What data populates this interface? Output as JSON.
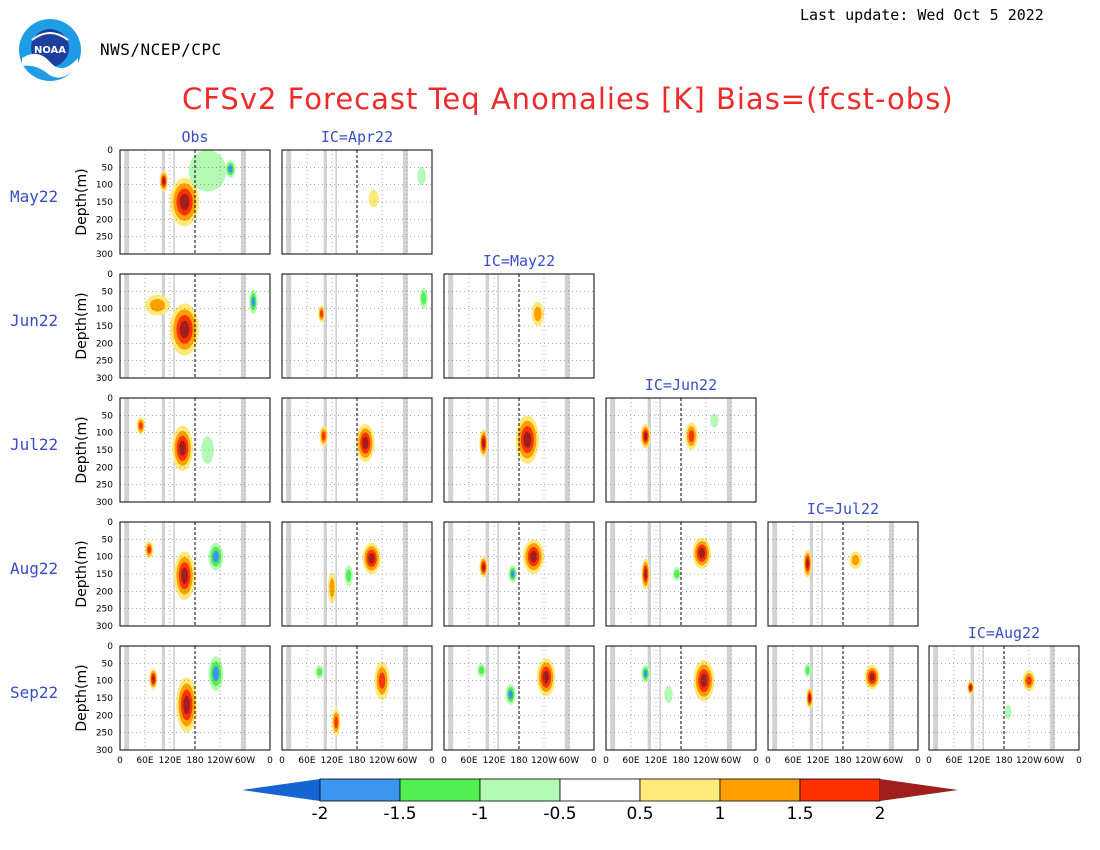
{
  "header": {
    "agency": "NWS/NCEP/CPC",
    "last_update": "Last update: Wed Oct 5 2022",
    "title": "CFSv2 Forecast Teq Anomalies [K] Bias=(fcst-obs)",
    "logo_text": "NOAA"
  },
  "chart_data": {
    "type": "heatmap",
    "panel_kind": "depth-longitude cross section",
    "rows": [
      "May22",
      "Jun22",
      "Jul22",
      "Aug22",
      "Sep22"
    ],
    "columns": [
      "Obs",
      "IC=Apr22",
      "IC=May22",
      "IC=Jun22",
      "IC=Jul22",
      "IC=Aug22"
    ],
    "ylabel": "Depth(m)",
    "y_ticks": [
      0,
      50,
      100,
      150,
      200,
      250,
      300
    ],
    "ylim": [
      300,
      0
    ],
    "x_ticks": [
      "0",
      "60E",
      "120E",
      "180",
      "120W",
      "60W",
      "0"
    ],
    "x_tick_degrees_east": [
      0,
      60,
      120,
      180,
      240,
      300,
      360
    ],
    "dateline_degrees_east": 180,
    "colorbar": {
      "levels": [
        -2,
        -1.5,
        -1,
        -0.5,
        0.5,
        1,
        1.5,
        2
      ],
      "labels": [
        "-2",
        "-1.5",
        "-1",
        "-0.5",
        "0.5",
        "1",
        "1.5",
        "2"
      ],
      "colors": [
        "#1464d2",
        "#3c96f0",
        "#50f050",
        "#b4fab4",
        "#ffffff",
        "#ffe978",
        "#ffa000",
        "#ff3200",
        "#a01e1e"
      ],
      "extend": "both"
    },
    "colors": {
      "title": "#ee2a2a",
      "labels": "#3a4cc8",
      "land_mask": "#d2d2d2"
    },
    "anomaly_features": [
      {
        "row": "May22",
        "col": "Obs",
        "lon": 155,
        "depth": 150,
        "value": 2.3,
        "rx": 35,
        "ry": 70
      },
      {
        "row": "May22",
        "col": "Obs",
        "lon": 105,
        "depth": 90,
        "value": 2.1,
        "rx": 10,
        "ry": 30
      },
      {
        "row": "May22",
        "col": "Obs",
        "lon": 265,
        "depth": 55,
        "value": -1.8,
        "rx": 12,
        "ry": 25
      },
      {
        "row": "May22",
        "col": "Obs",
        "lon": 210,
        "depth": 60,
        "value": -0.8,
        "rx": 45,
        "ry": 60
      },
      {
        "row": "May22",
        "col": "IC=Apr22",
        "lon": 220,
        "depth": 140,
        "value": 0.8,
        "rx": 12,
        "ry": 25
      },
      {
        "row": "May22",
        "col": "IC=Apr22",
        "lon": 335,
        "depth": 75,
        "value": -0.6,
        "rx": 10,
        "ry": 25
      },
      {
        "row": "Jun22",
        "col": "Obs",
        "lon": 155,
        "depth": 160,
        "value": 2.3,
        "rx": 35,
        "ry": 75
      },
      {
        "row": "Jun22",
        "col": "Obs",
        "lon": 90,
        "depth": 90,
        "value": 1.2,
        "rx": 30,
        "ry": 30
      },
      {
        "row": "Jun22",
        "col": "Obs",
        "lon": 320,
        "depth": 80,
        "value": -1.6,
        "rx": 10,
        "ry": 35
      },
      {
        "row": "Jun22",
        "col": "IC=Apr22",
        "lon": 95,
        "depth": 115,
        "value": 1.6,
        "rx": 8,
        "ry": 25
      },
      {
        "row": "Jun22",
        "col": "IC=Apr22",
        "lon": 340,
        "depth": 70,
        "value": -1.2,
        "rx": 10,
        "ry": 30
      },
      {
        "row": "Jun22",
        "col": "IC=May22",
        "lon": 225,
        "depth": 115,
        "value": 1.1,
        "rx": 15,
        "ry": 35
      },
      {
        "row": "Jul22",
        "col": "Obs",
        "lon": 150,
        "depth": 145,
        "value": 2.3,
        "rx": 25,
        "ry": 65
      },
      {
        "row": "Jul22",
        "col": "Obs",
        "lon": 50,
        "depth": 80,
        "value": 1.6,
        "rx": 10,
        "ry": 25
      },
      {
        "row": "Jul22",
        "col": "Obs",
        "lon": 210,
        "depth": 150,
        "value": -0.7,
        "rx": 15,
        "ry": 40
      },
      {
        "row": "Jul22",
        "col": "IC=Apr22",
        "lon": 200,
        "depth": 130,
        "value": 2.3,
        "rx": 22,
        "ry": 55
      },
      {
        "row": "Jul22",
        "col": "IC=Apr22",
        "lon": 100,
        "depth": 110,
        "value": 1.6,
        "rx": 10,
        "ry": 30
      },
      {
        "row": "Jul22",
        "col": "IC=May22",
        "lon": 200,
        "depth": 120,
        "value": 2.3,
        "rx": 28,
        "ry": 70
      },
      {
        "row": "Jul22",
        "col": "IC=May22",
        "lon": 95,
        "depth": 130,
        "value": 2.1,
        "rx": 10,
        "ry": 40
      },
      {
        "row": "Jul22",
        "col": "IC=Jun22",
        "lon": 95,
        "depth": 110,
        "value": 2.1,
        "rx": 12,
        "ry": 35
      },
      {
        "row": "Jul22",
        "col": "IC=Jun22",
        "lon": 205,
        "depth": 110,
        "value": 1.6,
        "rx": 15,
        "ry": 40
      },
      {
        "row": "Jul22",
        "col": "IC=Jun22",
        "lon": 260,
        "depth": 65,
        "value": -0.7,
        "rx": 10,
        "ry": 20
      },
      {
        "row": "Aug22",
        "col": "Obs",
        "lon": 155,
        "depth": 155,
        "value": 2.3,
        "rx": 25,
        "ry": 70
      },
      {
        "row": "Aug22",
        "col": "Obs",
        "lon": 230,
        "depth": 100,
        "value": -1.8,
        "rx": 18,
        "ry": 40
      },
      {
        "row": "Aug22",
        "col": "Obs",
        "lon": 70,
        "depth": 80,
        "value": 1.6,
        "rx": 10,
        "ry": 25
      },
      {
        "row": "Aug22",
        "col": "IC=Apr22",
        "lon": 215,
        "depth": 105,
        "value": 2.1,
        "rx": 22,
        "ry": 45
      },
      {
        "row": "Aug22",
        "col": "IC=Apr22",
        "lon": 160,
        "depth": 155,
        "value": -1.3,
        "rx": 10,
        "ry": 30
      },
      {
        "row": "Aug22",
        "col": "IC=Apr22",
        "lon": 120,
        "depth": 190,
        "value": 1.1,
        "rx": 10,
        "ry": 45
      },
      {
        "row": "Aug22",
        "col": "IC=May22",
        "lon": 215,
        "depth": 100,
        "value": 2.3,
        "rx": 25,
        "ry": 50
      },
      {
        "row": "Aug22",
        "col": "IC=May22",
        "lon": 165,
        "depth": 150,
        "value": -1.8,
        "rx": 10,
        "ry": 25
      },
      {
        "row": "Aug22",
        "col": "IC=May22",
        "lon": 95,
        "depth": 130,
        "value": 2.1,
        "rx": 10,
        "ry": 30
      },
      {
        "row": "Aug22",
        "col": "IC=Jun22",
        "lon": 230,
        "depth": 90,
        "value": 2.1,
        "rx": 22,
        "ry": 45
      },
      {
        "row": "Aug22",
        "col": "IC=Jun22",
        "lon": 95,
        "depth": 150,
        "value": 2.3,
        "rx": 10,
        "ry": 45
      },
      {
        "row": "Aug22",
        "col": "IC=Jun22",
        "lon": 170,
        "depth": 150,
        "value": -1.3,
        "rx": 10,
        "ry": 20
      },
      {
        "row": "Aug22",
        "col": "IC=Jul22",
        "lon": 95,
        "depth": 120,
        "value": 2.1,
        "rx": 10,
        "ry": 40
      },
      {
        "row": "Aug22",
        "col": "IC=Jul22",
        "lon": 210,
        "depth": 110,
        "value": 1.1,
        "rx": 15,
        "ry": 25
      },
      {
        "row": "Sep22",
        "col": "Obs",
        "lon": 160,
        "depth": 170,
        "value": 2.3,
        "rx": 25,
        "ry": 80
      },
      {
        "row": "Sep22",
        "col": "Obs",
        "lon": 230,
        "depth": 80,
        "value": -1.8,
        "rx": 18,
        "ry": 50
      },
      {
        "row": "Sep22",
        "col": "Obs",
        "lon": 80,
        "depth": 95,
        "value": 2.1,
        "rx": 10,
        "ry": 30
      },
      {
        "row": "Sep22",
        "col": "IC=Apr22",
        "lon": 240,
        "depth": 100,
        "value": 1.6,
        "rx": 18,
        "ry": 55
      },
      {
        "row": "Sep22",
        "col": "IC=Apr22",
        "lon": 130,
        "depth": 220,
        "value": 1.6,
        "rx": 10,
        "ry": 40
      },
      {
        "row": "Sep22",
        "col": "IC=Apr22",
        "lon": 90,
        "depth": 75,
        "value": -1.3,
        "rx": 10,
        "ry": 20
      },
      {
        "row": "Sep22",
        "col": "IC=May22",
        "lon": 245,
        "depth": 90,
        "value": 2.1,
        "rx": 22,
        "ry": 55
      },
      {
        "row": "Sep22",
        "col": "IC=May22",
        "lon": 160,
        "depth": 140,
        "value": -1.8,
        "rx": 12,
        "ry": 30
      },
      {
        "row": "Sep22",
        "col": "IC=May22",
        "lon": 90,
        "depth": 70,
        "value": -1.3,
        "rx": 10,
        "ry": 20
      },
      {
        "row": "Sep22",
        "col": "IC=Jun22",
        "lon": 235,
        "depth": 100,
        "value": 2.1,
        "rx": 25,
        "ry": 60
      },
      {
        "row": "Sep22",
        "col": "IC=Jun22",
        "lon": 95,
        "depth": 80,
        "value": -1.8,
        "rx": 10,
        "ry": 25
      },
      {
        "row": "Sep22",
        "col": "IC=Jun22",
        "lon": 150,
        "depth": 140,
        "value": -0.8,
        "rx": 10,
        "ry": 25
      },
      {
        "row": "Sep22",
        "col": "IC=Jul22",
        "lon": 250,
        "depth": 90,
        "value": 2.1,
        "rx": 18,
        "ry": 35
      },
      {
        "row": "Sep22",
        "col": "IC=Jul22",
        "lon": 100,
        "depth": 150,
        "value": 2.3,
        "rx": 8,
        "ry": 30
      },
      {
        "row": "Sep22",
        "col": "IC=Jul22",
        "lon": 95,
        "depth": 70,
        "value": -1.3,
        "rx": 8,
        "ry": 20
      },
      {
        "row": "Sep22",
        "col": "IC=Aug22",
        "lon": 100,
        "depth": 120,
        "value": 2.1,
        "rx": 8,
        "ry": 20
      },
      {
        "row": "Sep22",
        "col": "IC=Aug22",
        "lon": 240,
        "depth": 100,
        "value": 1.6,
        "rx": 15,
        "ry": 30
      },
      {
        "row": "Sep22",
        "col": "IC=Aug22",
        "lon": 190,
        "depth": 190,
        "value": -0.7,
        "rx": 8,
        "ry": 20
      }
    ]
  }
}
